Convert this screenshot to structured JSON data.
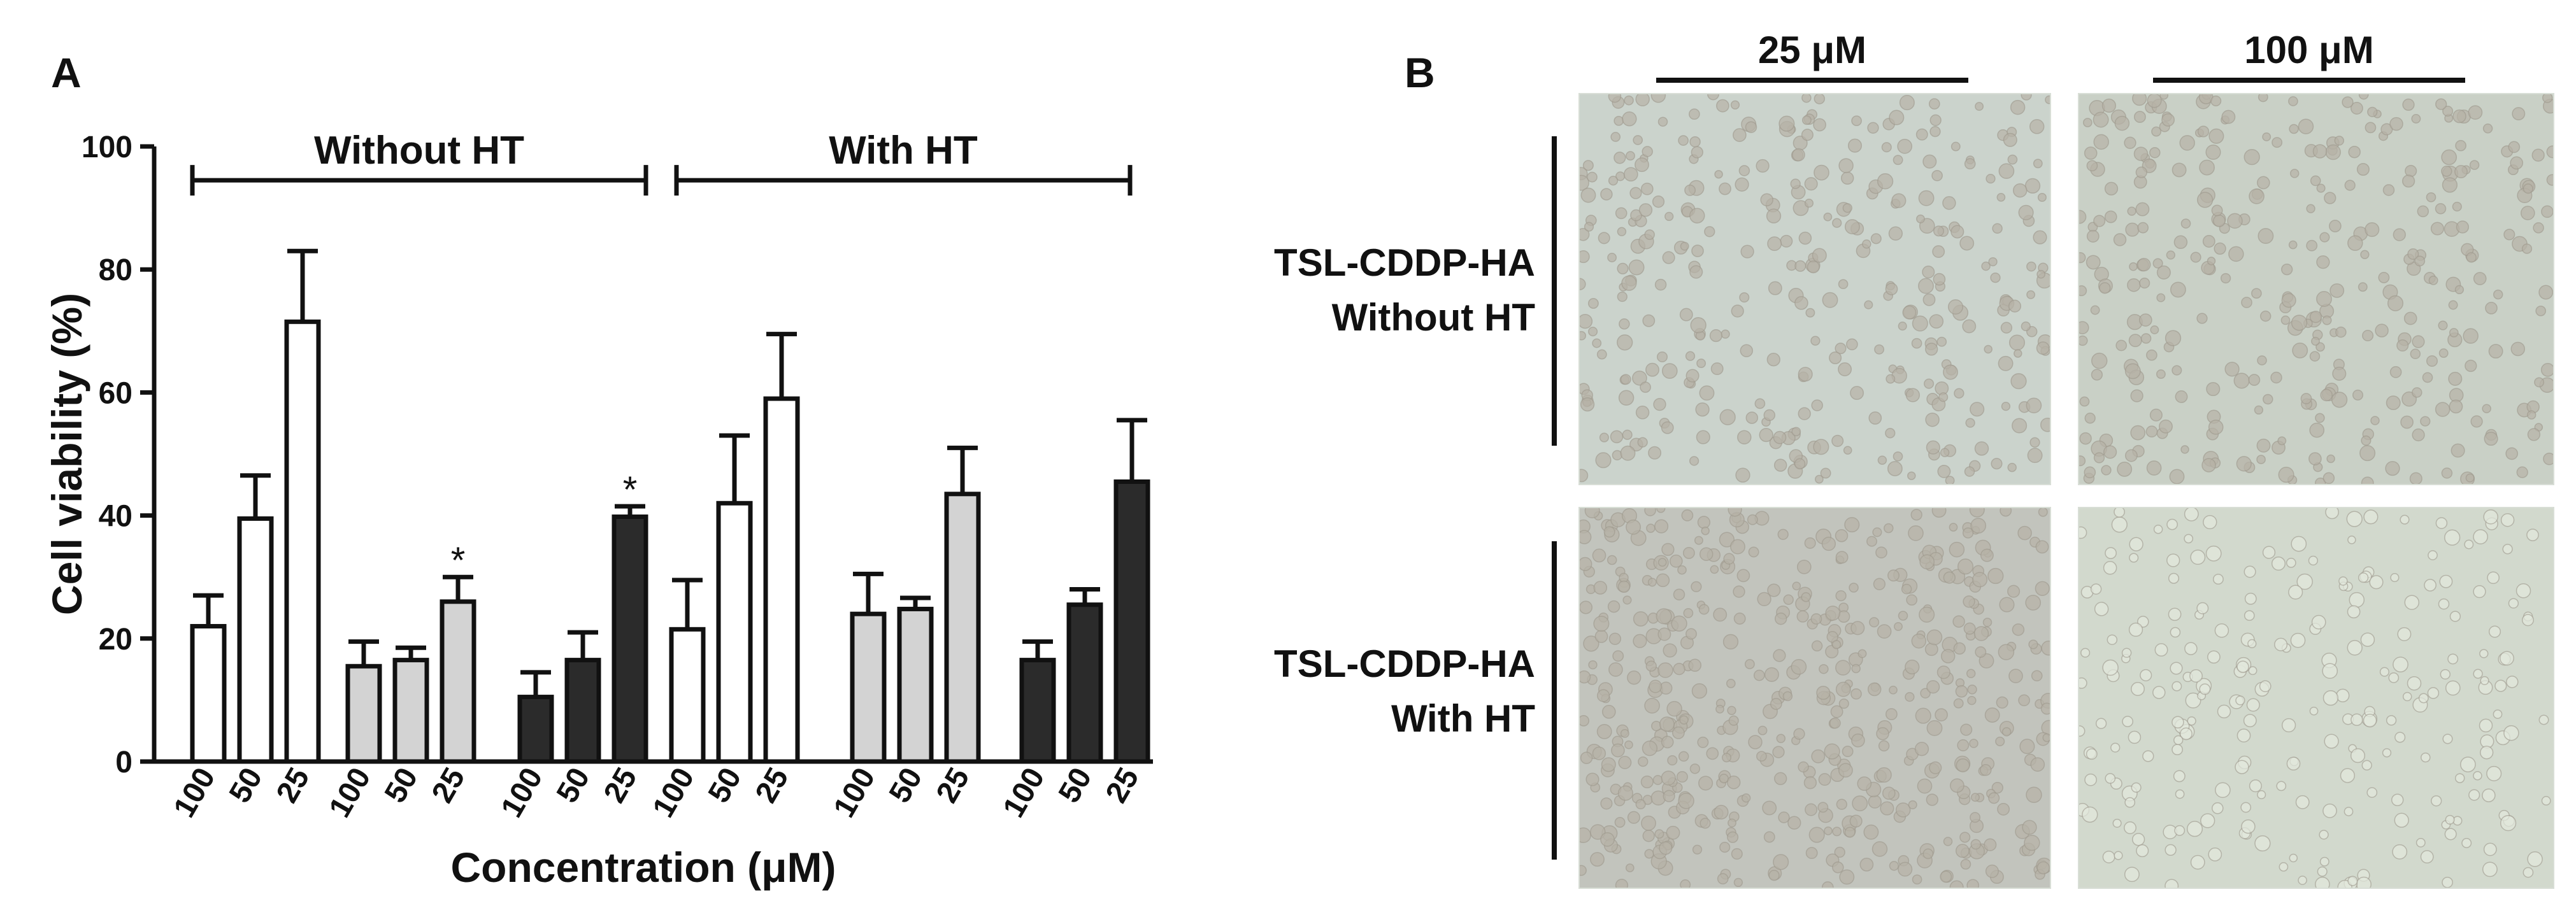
{
  "panel_a": {
    "letter": "A",
    "chart_data": {
      "type": "bar",
      "ylabel": "Cell viability (%)",
      "xlabel": "Concentration (μM)",
      "ylim": [
        0,
        100
      ],
      "yticks": [
        0,
        20,
        40,
        60,
        80,
        100
      ],
      "groups": [
        {
          "fill": "#ffffff",
          "categories": [
            "100",
            "50",
            "25"
          ],
          "values": [
            22,
            39.5,
            71.5
          ],
          "errors": [
            5,
            7,
            11.5
          ]
        },
        {
          "fill": "#d3d3d3",
          "categories": [
            "100",
            "50",
            "25"
          ],
          "values": [
            15.5,
            16.5,
            26
          ],
          "errors": [
            4,
            2,
            4
          ],
          "stars": [
            "",
            "",
            "*"
          ]
        },
        {
          "fill": "#2b2b2b",
          "categories": [
            "100",
            "50",
            "25"
          ],
          "values": [
            10.5,
            16.5,
            39.8
          ],
          "errors": [
            4,
            4.5,
            1.7
          ],
          "stars": [
            "",
            "",
            "*"
          ]
        },
        {
          "fill": "#ffffff",
          "categories": [
            "100",
            "50",
            "25"
          ],
          "values": [
            21.5,
            42,
            59
          ],
          "errors": [
            8,
            11,
            10.5
          ]
        },
        {
          "fill": "#d3d3d3",
          "categories": [
            "100",
            "50",
            "25"
          ],
          "values": [
            24,
            24.8,
            43.5
          ],
          "errors": [
            6.5,
            1.8,
            7.5
          ]
        },
        {
          "fill": "#2b2b2b",
          "categories": [
            "100",
            "50",
            "25"
          ],
          "values": [
            16.5,
            25.5,
            45.5
          ],
          "errors": [
            3,
            2.5,
            10
          ]
        }
      ],
      "brackets": [
        {
          "label": "Without HT",
          "from_group": 0,
          "to_group": 2,
          "y": 94.5
        },
        {
          "label": "With HT",
          "from_group": 3,
          "to_group": 5,
          "y": 94.5
        }
      ]
    }
  },
  "panel_b": {
    "letter": "B",
    "columns": [
      "25 μM",
      "100 μM"
    ],
    "rows": [
      {
        "line1": "TSL-CDDP-HA",
        "line2": "Without HT"
      },
      {
        "line1": "TSL-CDDP-HA",
        "line2": "With HT"
      }
    ],
    "image_colors": [
      "#cbd3cc",
      "#c9d0c6",
      "#c2c4bd",
      "#d2d9cd"
    ]
  }
}
